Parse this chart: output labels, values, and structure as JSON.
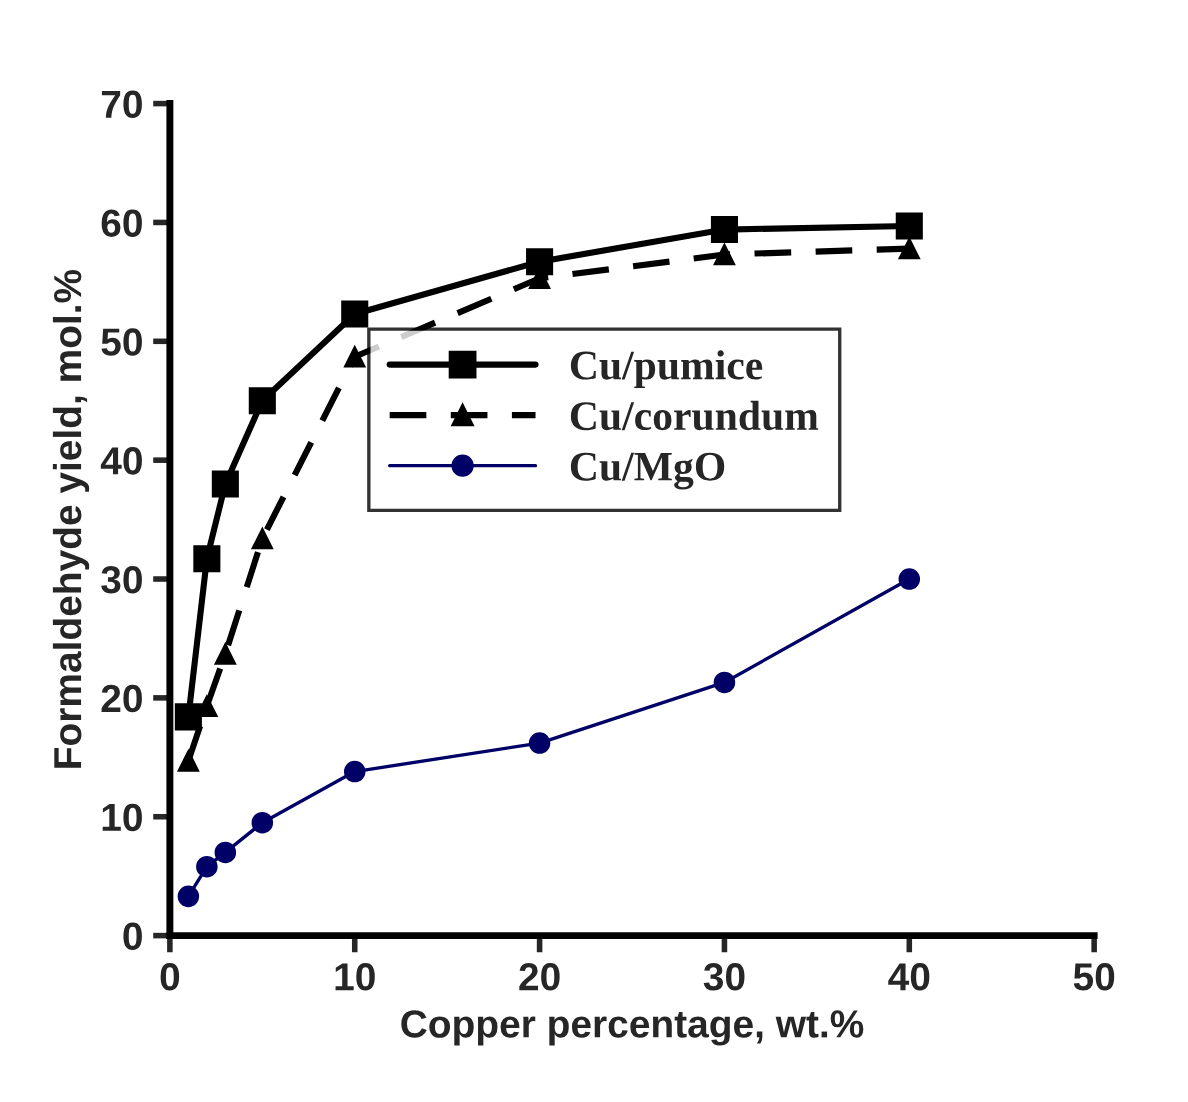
{
  "chart_data": {
    "type": "line",
    "xlabel": "Copper percentage, wt.%",
    "ylabel": "Formaldehyde yield, mol.%",
    "x": [
      1,
      2,
      3,
      5,
      10,
      20,
      30,
      40
    ],
    "series": [
      {
        "name": "Cu/pumice",
        "color": "#000000",
        "marker": "square",
        "line_style": "solid",
        "values": [
          18.4,
          31.7,
          38.0,
          45.0,
          52.3,
          56.7,
          59.4,
          59.7
        ]
      },
      {
        "name": "Cu/corundum",
        "color": "#000000",
        "marker": "triangle",
        "line_style": "dashed",
        "values": [
          14.7,
          19.3,
          23.7,
          33.4,
          48.7,
          55.3,
          57.3,
          57.8
        ]
      },
      {
        "name": "Cu/MgO",
        "color": "#000066",
        "marker": "circle",
        "line_style": "solid",
        "values": [
          3.3,
          5.8,
          7.0,
          9.5,
          13.8,
          16.2,
          21.3,
          30.0
        ]
      }
    ],
    "xlim": [
      0,
      50
    ],
    "xticks": [
      0,
      10,
      20,
      30,
      40,
      50
    ],
    "ylim": [
      0,
      70
    ],
    "yticks": [
      0,
      10,
      20,
      30,
      40,
      50,
      60,
      70
    ],
    "grid": false,
    "legend": "right"
  }
}
